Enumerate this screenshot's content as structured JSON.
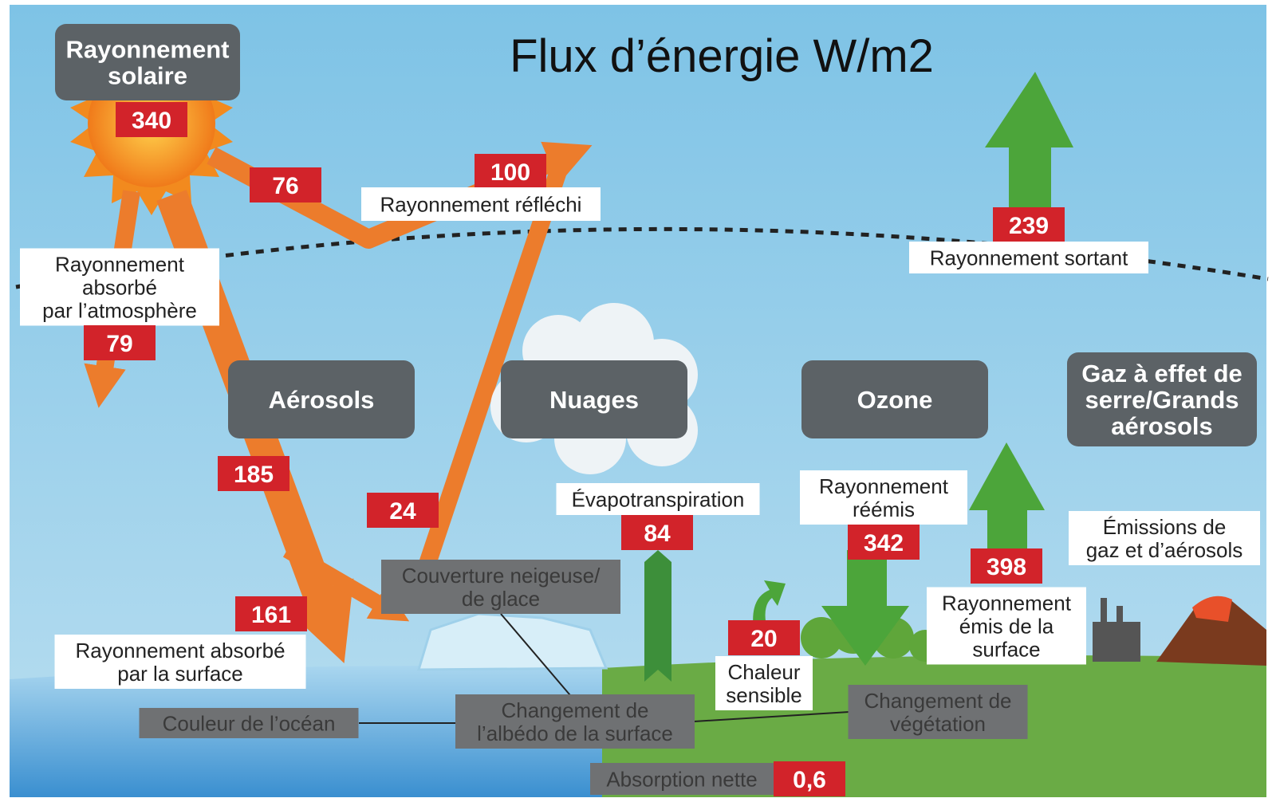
{
  "title": "Flux d’énergie W/m2",
  "flows": {
    "solar": {
      "lines": [
        "Rayonnement",
        "solaire"
      ],
      "value": 340
    },
    "reflected_by_atmosphere": {
      "value": 76
    },
    "reflected": {
      "label": "Rayonnement réfléchi",
      "value": 100
    },
    "absorbed_by_atmosphere": {
      "lines": [
        "Rayonnement",
        "absorbé",
        "par l’atmosphère"
      ],
      "value": 79
    },
    "outgoing": {
      "label": "Rayonnement sortant",
      "value": 239
    },
    "to_surface": {
      "value": 185
    },
    "reflected_by_surface": {
      "value": 24
    },
    "absorbed_by_surface": {
      "lines": [
        "Rayonnement absorbé",
        "par la surface"
      ],
      "value": 161
    },
    "evapotranspiration": {
      "label": "Évapotranspiration",
      "value": 84
    },
    "sensible_heat": {
      "lines": [
        "Chaleur",
        "sensible"
      ],
      "value": 20
    },
    "reemitted": {
      "lines": [
        "Rayonnement",
        "réémis"
      ],
      "value": 342
    },
    "surface_emitted": {
      "lines": [
        "Rayonnement",
        "émis de la",
        "surface"
      ],
      "value": 398
    },
    "net_absorption": {
      "label": "Absorption nette",
      "value": {
        "value": 0.6,
        "label": "0,6"
      }
    }
  },
  "factors": {
    "aerosols": "Aérosols",
    "clouds": "Nuages",
    "ozone": "Ozone",
    "greenhouse": [
      "Gaz à effet de",
      "serre/Grands",
      "aérosols"
    ],
    "emissions": [
      "Émissions de",
      "gaz et d’aérosols"
    ]
  },
  "surface_changes": {
    "snow_ice": [
      "Couverture neigeuse/",
      "de glace"
    ],
    "albedo": [
      "Changement de",
      "l’albédo de la surface"
    ],
    "ocean_color": [
      "Couleur de l’océan"
    ],
    "vegetation": [
      "Changement de",
      "végétation"
    ]
  }
}
